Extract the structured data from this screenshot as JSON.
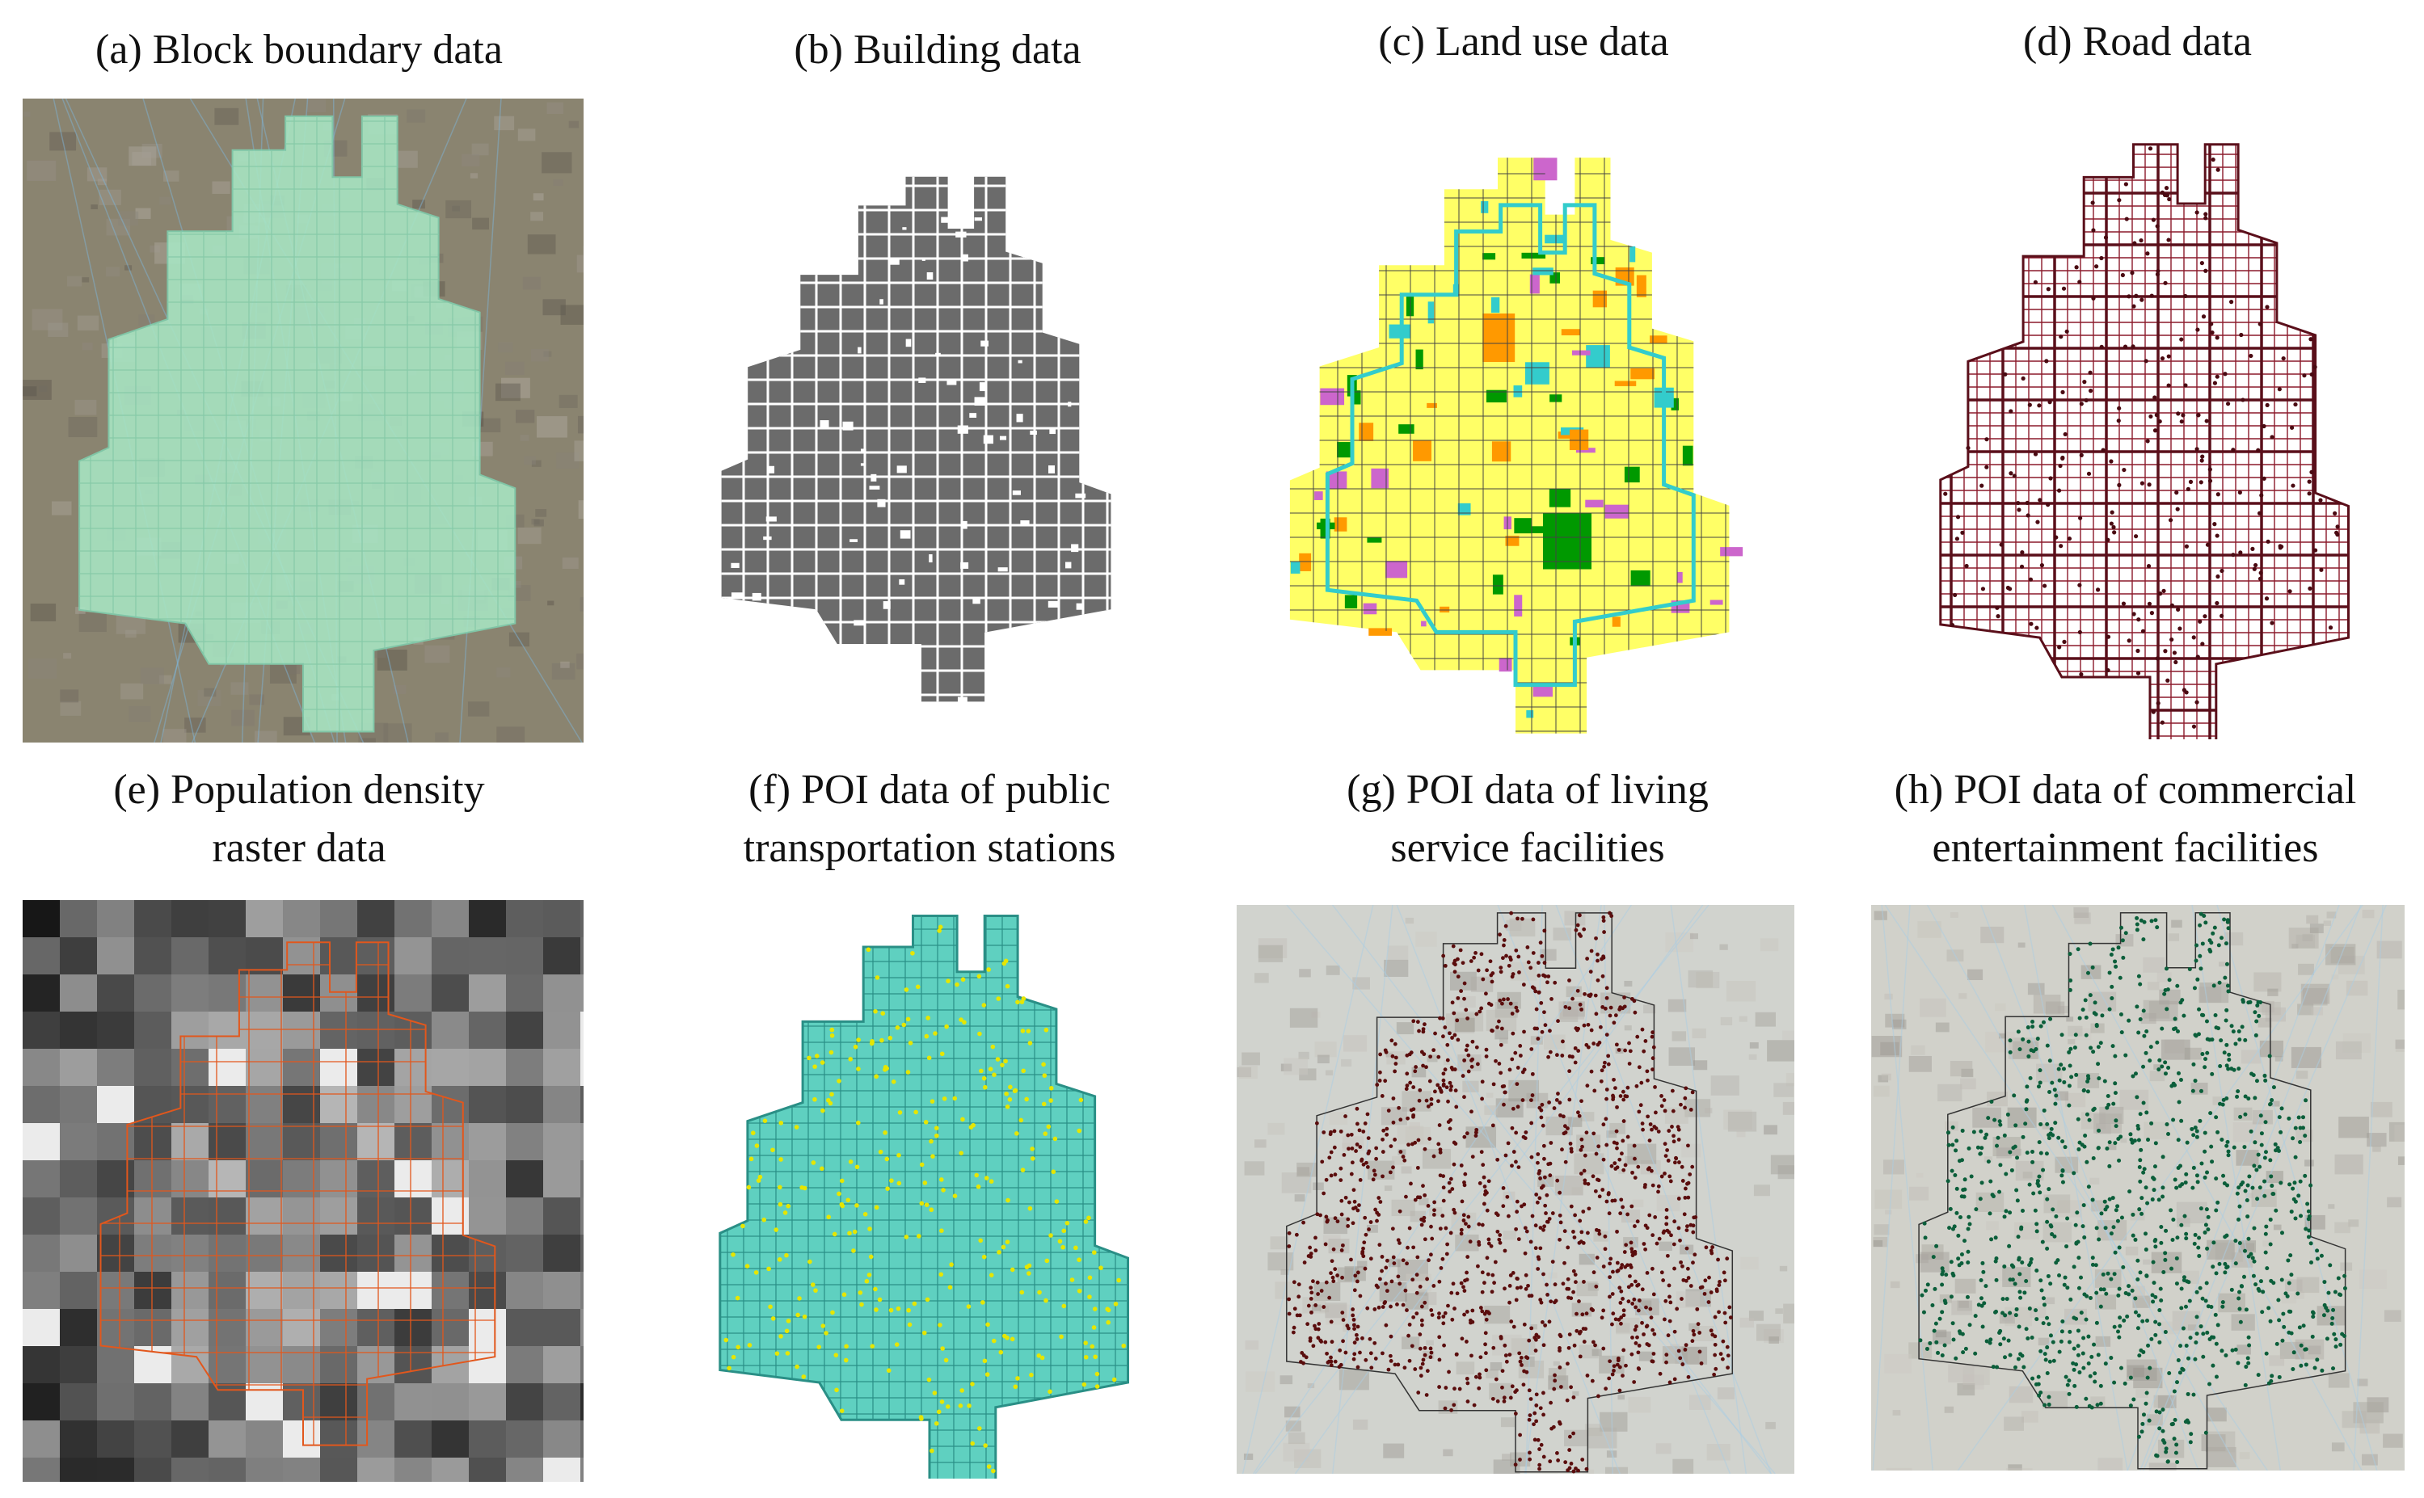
{
  "figure": {
    "panels": [
      {
        "id": "a",
        "caption_lines": [
          "(a) Block boundary data"
        ],
        "kind": "satellite-blocks"
      },
      {
        "id": "b",
        "caption_lines": [
          "(b) Building data"
        ],
        "kind": "buildings"
      },
      {
        "id": "c",
        "caption_lines": [
          "(c) Land use data"
        ],
        "kind": "landuse"
      },
      {
        "id": "d",
        "caption_lines": [
          "(d) Road data"
        ],
        "kind": "roads"
      },
      {
        "id": "e",
        "caption_lines": [
          "(e) Population density",
          "raster data"
        ],
        "kind": "raster"
      },
      {
        "id": "f",
        "caption_lines": [
          "(f) POI data of public",
          "transportation stations"
        ],
        "kind": "poi-transport"
      },
      {
        "id": "g",
        "caption_lines": [
          "(g) POI data of living",
          "service facilities"
        ],
        "kind": "poi-living"
      },
      {
        "id": "h",
        "caption_lines": [
          "(h) POI data of commercial",
          "entertainment facilities"
        ],
        "kind": "poi-commercial"
      }
    ],
    "colors": {
      "block_fill": "#a8e6c4",
      "building": "#6b6b6b",
      "landuse_residential": "#ffff66",
      "landuse_commercial": "#ff9900",
      "landuse_green": "#009900",
      "landuse_public": "#cc66cc",
      "landuse_water": "#33cccc",
      "road": "#8b1a2b",
      "raster_overlay": "#e2571c",
      "poi_transport_point": "#e6e600",
      "poi_transport_fill": "#5fd0c0",
      "poi_living_point": "#5a0d0d",
      "poi_commercial_point": "#0b5e3a"
    }
  }
}
